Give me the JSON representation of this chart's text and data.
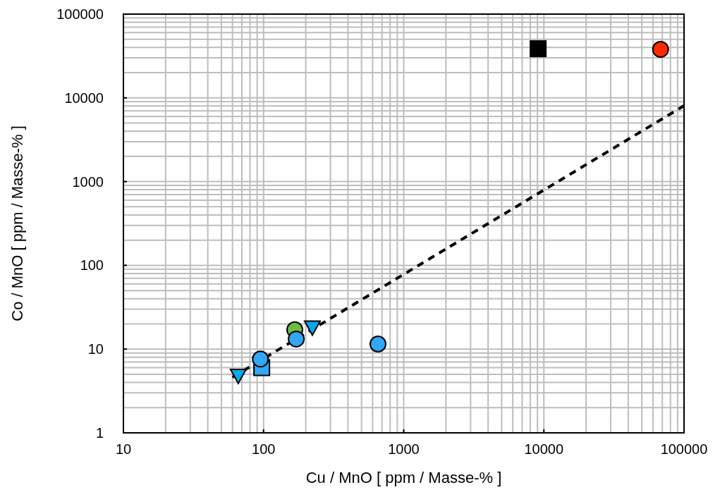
{
  "chart_data": {
    "type": "scatter",
    "xlabel": "Cu / MnO [ ppm / Masse-% ]",
    "ylabel": "Co / MnO [ ppm / Masse-% ]",
    "log": "xy",
    "grid": true,
    "xlim": [
      10,
      100000
    ],
    "xticks": [
      10,
      100,
      1000,
      10000,
      100000
    ],
    "ylim": [
      1,
      100000
    ],
    "yticks": [
      1,
      10,
      100,
      1000,
      10000,
      100000
    ],
    "series": [
      {
        "type": "line",
        "color": "#000000",
        "line_style": "dashed",
        "marker": "none",
        "x": [
          60,
          100000
        ],
        "values": [
          4.6,
          8050
        ]
      },
      {
        "color": "#000000",
        "marker": "square",
        "x": [
          9100
        ],
        "values": [
          38600
        ]
      },
      {
        "color": "#ff2a00",
        "marker": "circle",
        "x": [
          68000
        ],
        "values": [
          37900
        ]
      },
      {
        "color": "#6cbd45",
        "marker": "circle",
        "x": [
          167
        ],
        "values": [
          17
        ]
      },
      {
        "color": "#00aaee",
        "marker": "triangle",
        "x": [
          223,
          66
        ],
        "values": [
          18.5,
          4.9
        ]
      },
      {
        "color": "#33a6f5",
        "marker": "square",
        "x": [
          97
        ],
        "values": [
          6
        ]
      },
      {
        "color": "#33a6f5",
        "marker": "circle",
        "x": [
          171,
          655,
          95
        ],
        "values": [
          13.2,
          11.5,
          7.6
        ]
      }
    ]
  }
}
